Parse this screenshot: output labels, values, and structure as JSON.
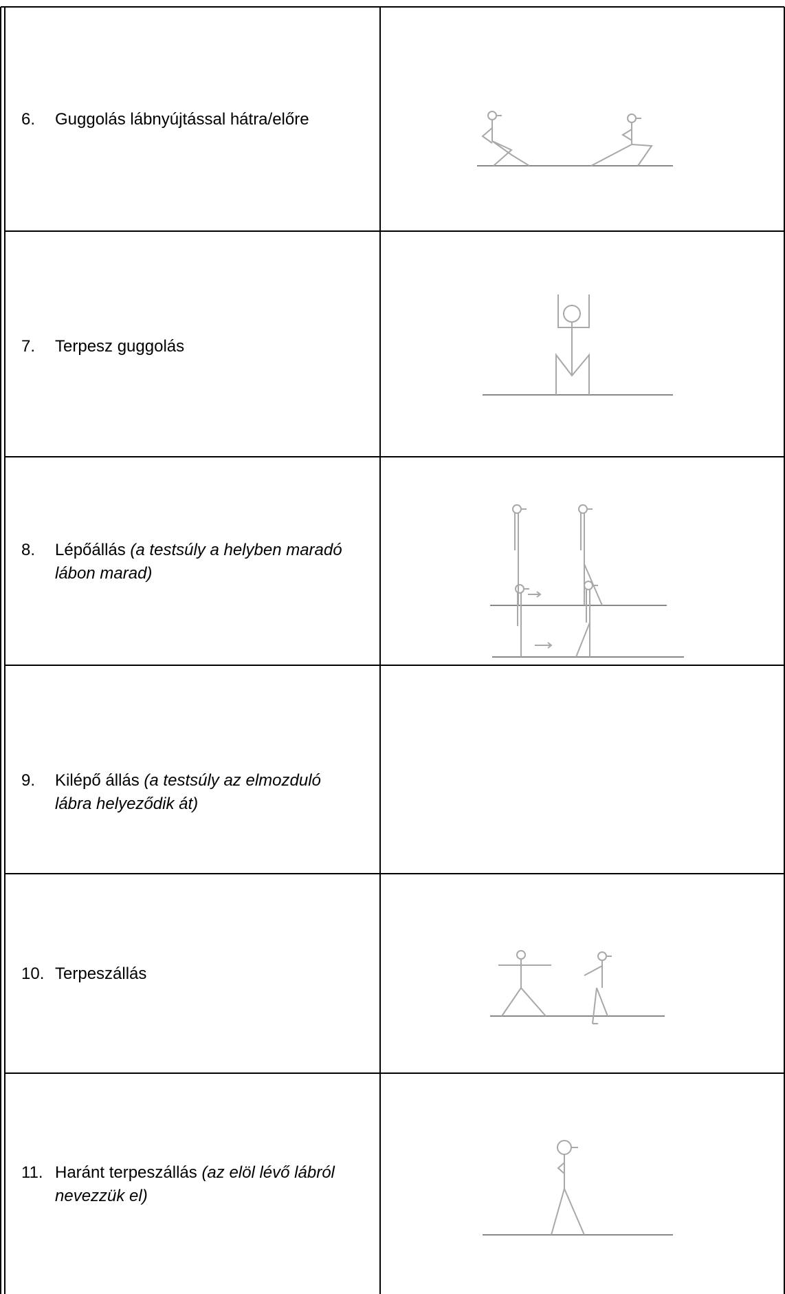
{
  "rows": [
    {
      "number": "6.",
      "text": "Guggolás lábnyújtással hátra/előre"
    },
    {
      "number": "7.",
      "text": "Terpesz guggolás"
    },
    {
      "number": "8.",
      "text": "Lépőállás",
      "note": "(a testsúly a helyben maradó lábon marad)"
    },
    {
      "number": "9.",
      "text": "Kilépő állás",
      "note": "(a testsúly az elmozduló lábra helyeződik át)"
    },
    {
      "number": "10.",
      "text": "Terpeszállás"
    },
    {
      "number": "11.",
      "text": "Haránt terpeszállás",
      "note": "(az elöl lévő lábról nevezzük el)"
    }
  ]
}
